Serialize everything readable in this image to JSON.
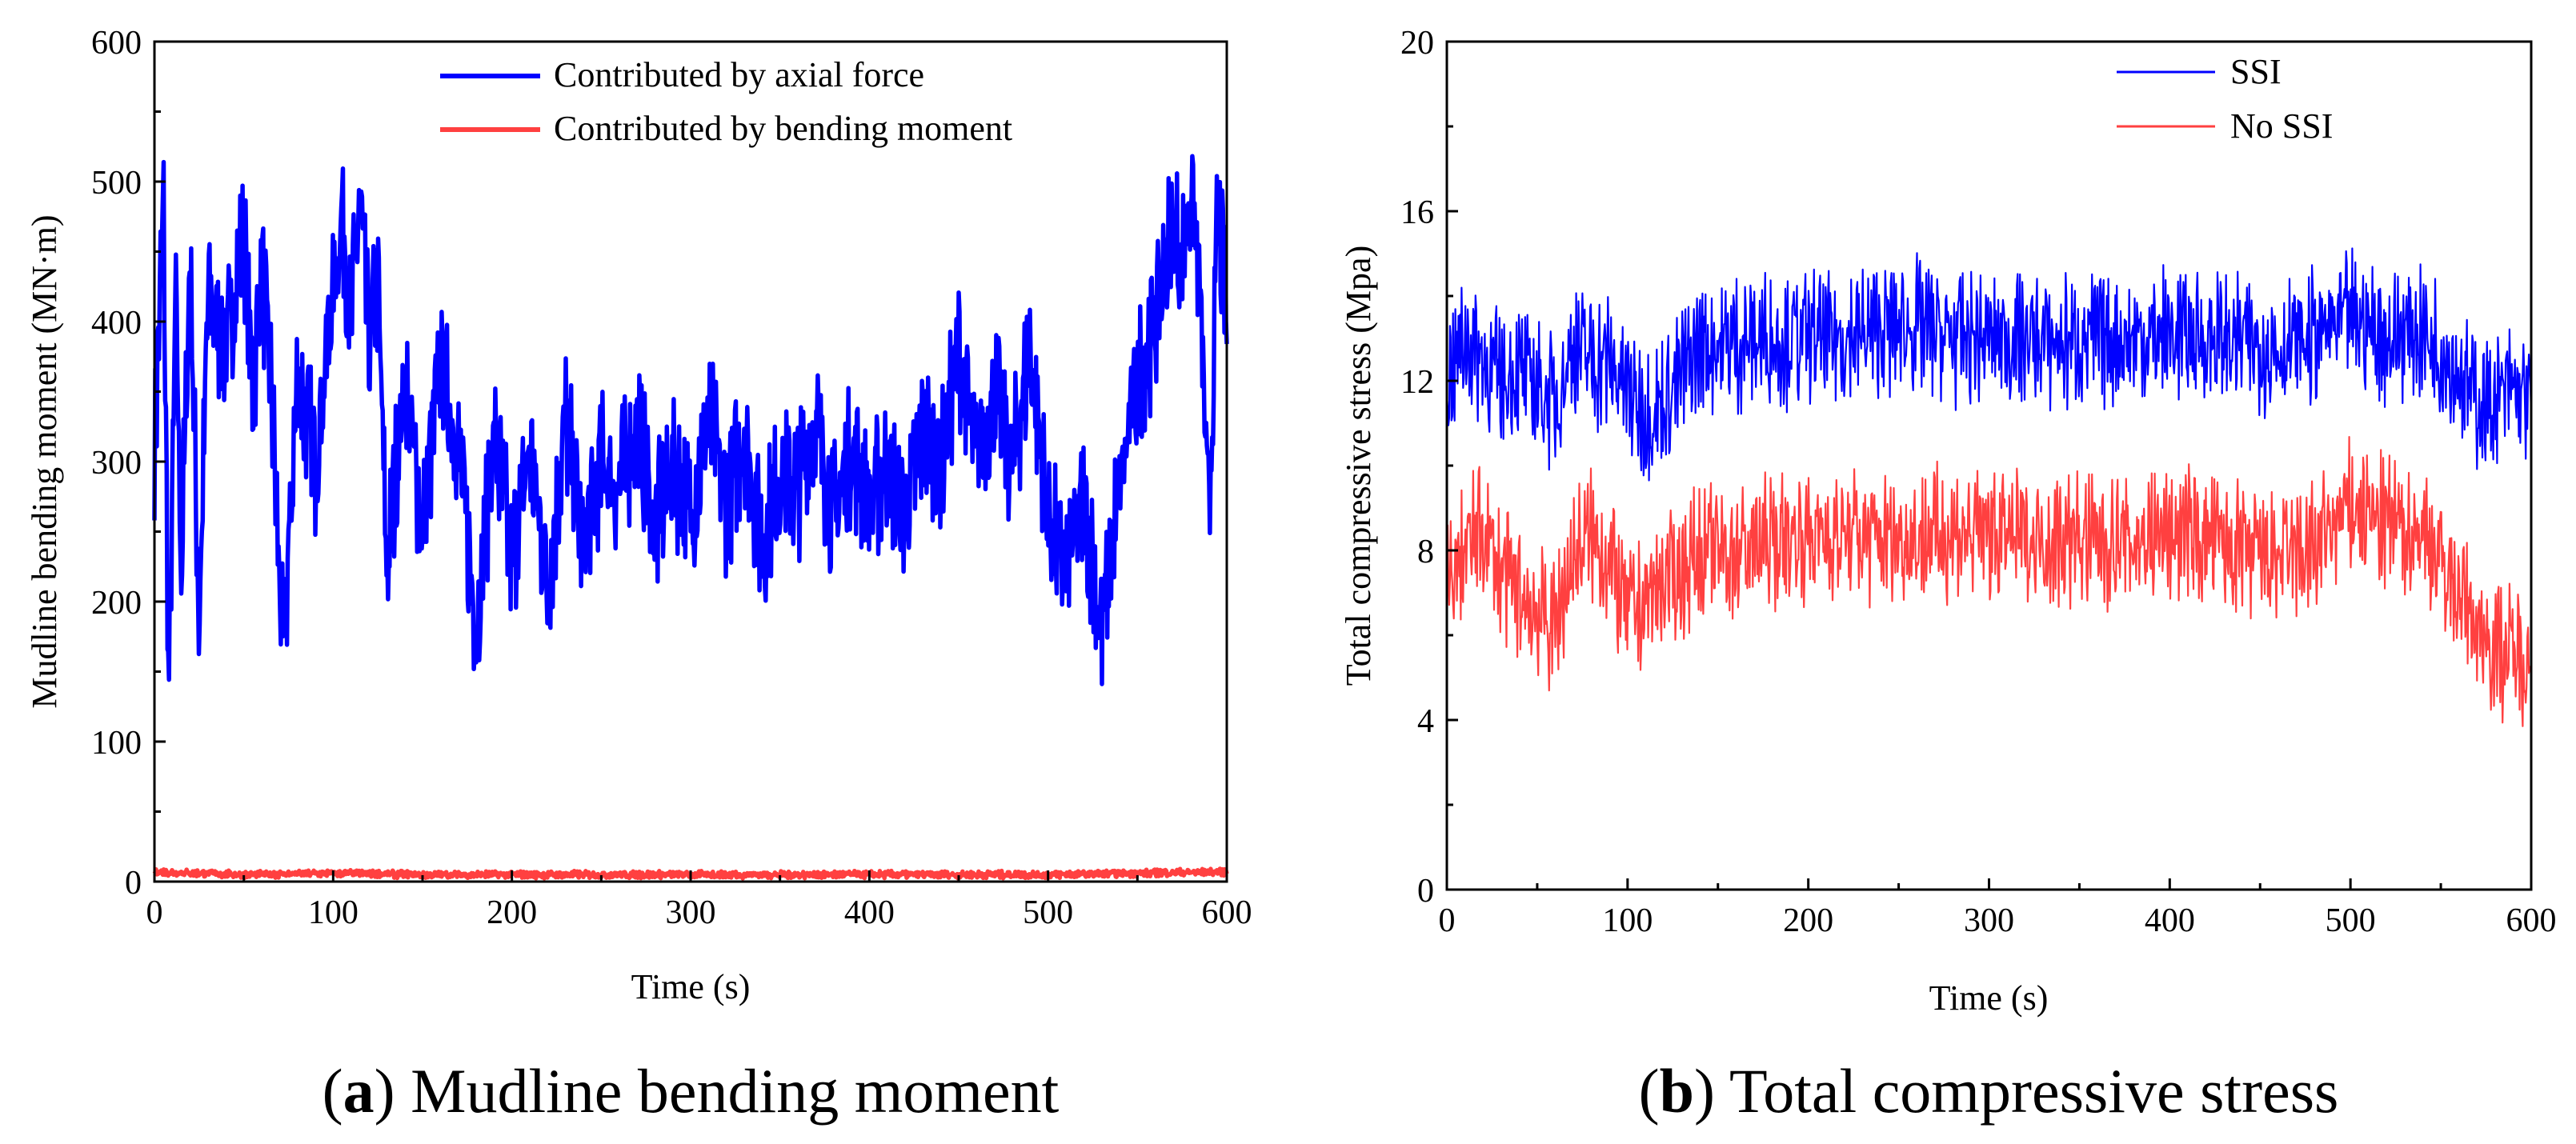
{
  "chart_data": [
    {
      "type": "line",
      "panel_letter": "a",
      "caption_text": " Mudline bending moment",
      "xlabel": "Time (s)",
      "ylabel": "Mudline bending moment (MN·m)",
      "xlim": [
        0,
        600
      ],
      "ylim": [
        0,
        600
      ],
      "xticks": [
        "0",
        "100",
        "200",
        "300",
        "400",
        "500",
        "600"
      ],
      "yticks": [
        "0",
        "100",
        "200",
        "300",
        "400",
        "500",
        "600"
      ],
      "legend_position": "top-center",
      "series": [
        {
          "name": "Contributed by axial force",
          "color": "#0000ff",
          "x": [
            0,
            5,
            8,
            12,
            15,
            20,
            25,
            30,
            40,
            50,
            55,
            60,
            65,
            72,
            80,
            90,
            100,
            105,
            110,
            115,
            120,
            125,
            130,
            140,
            150,
            160,
            170,
            180,
            190,
            200,
            210,
            220,
            230,
            240,
            250,
            260,
            270,
            280,
            290,
            300,
            310,
            320,
            330,
            340,
            350,
            360,
            370,
            380,
            390,
            400,
            410,
            420,
            430,
            440,
            450,
            460,
            470,
            480,
            490,
            500,
            510,
            520,
            530,
            540,
            550,
            560,
            570,
            575,
            580,
            585,
            590,
            595,
            600
          ],
          "y": [
            300,
            490,
            125,
            420,
            220,
            450,
            180,
            420,
            380,
            460,
            350,
            440,
            360,
            160,
            360,
            300,
            420,
            480,
            400,
            490,
            380,
            430,
            220,
            360,
            250,
            370,
            310,
            180,
            320,
            230,
            310,
            210,
            330,
            240,
            300,
            280,
            330,
            250,
            300,
            260,
            330,
            270,
            320,
            240,
            290,
            280,
            330,
            260,
            310,
            270,
            300,
            260,
            320,
            300,
            380,
            300,
            350,
            300,
            380,
            260,
            220,
            270,
            180,
            280,
            360,
            400,
            470,
            440,
            500,
            420,
            250,
            480,
            400
          ]
        },
        {
          "name": "Contributed by bending moment",
          "color": "#ff4040",
          "x": [
            0,
            50,
            100,
            150,
            200,
            250,
            300,
            350,
            400,
            450,
            500,
            550,
            600
          ],
          "y": [
            7,
            5,
            6,
            5,
            5,
            5,
            5,
            5,
            5,
            5,
            5,
            6,
            7
          ]
        }
      ]
    },
    {
      "type": "line",
      "panel_letter": "b",
      "caption_text": " Total compressive stress",
      "xlabel": "Time (s)",
      "ylabel": "Total compressive stress (Mpa)",
      "xlim": [
        0,
        600
      ],
      "ylim": [
        0,
        20
      ],
      "xticks": [
        "0",
        "100",
        "200",
        "300",
        "400",
        "500",
        "600"
      ],
      "yticks": [
        "0",
        "4",
        "8",
        "12",
        "16",
        "20"
      ],
      "legend_position": "top-right",
      "series": [
        {
          "name": "SSI",
          "color": "#0000ff",
          "x": [
            0,
            10,
            20,
            30,
            40,
            50,
            60,
            70,
            80,
            90,
            100,
            110,
            120,
            140,
            160,
            180,
            200,
            220,
            240,
            260,
            280,
            300,
            320,
            340,
            360,
            380,
            400,
            420,
            440,
            460,
            480,
            500,
            520,
            540,
            560,
            570,
            580,
            590,
            600
          ],
          "y": [
            12,
            13,
            12.5,
            12,
            12.2,
            11.8,
            11.5,
            12.8,
            12.5,
            12.4,
            11.8,
            11.2,
            11.5,
            12.8,
            12.9,
            13,
            13,
            13,
            13.2,
            13.3,
            13,
            13,
            13,
            12.9,
            13,
            13,
            13.1,
            13,
            12.9,
            12.8,
            13,
            13.5,
            13,
            13.2,
            12.2,
            11.5,
            11.5,
            11.8,
            11.5
          ]
        },
        {
          "name": "No SSI",
          "color": "#ff4040",
          "x": [
            0,
            10,
            20,
            30,
            40,
            50,
            60,
            70,
            80,
            90,
            100,
            110,
            120,
            140,
            160,
            180,
            200,
            220,
            240,
            260,
            280,
            300,
            320,
            340,
            360,
            380,
            400,
            420,
            440,
            460,
            480,
            500,
            520,
            540,
            560,
            570,
            580,
            590,
            600
          ],
          "y": [
            7,
            8,
            8.5,
            7.5,
            7,
            6.5,
            6.2,
            7.8,
            8.3,
            7.8,
            6.5,
            6.8,
            7.2,
            7.9,
            8,
            8.2,
            8.4,
            8.3,
            8.3,
            8.3,
            8.4,
            8.4,
            8.3,
            8.3,
            8.2,
            8.2,
            8.4,
            8.3,
            7.9,
            7.8,
            8,
            9,
            8.6,
            8.5,
            7,
            6.2,
            5.8,
            5.5,
            5.6
          ]
        }
      ]
    }
  ]
}
